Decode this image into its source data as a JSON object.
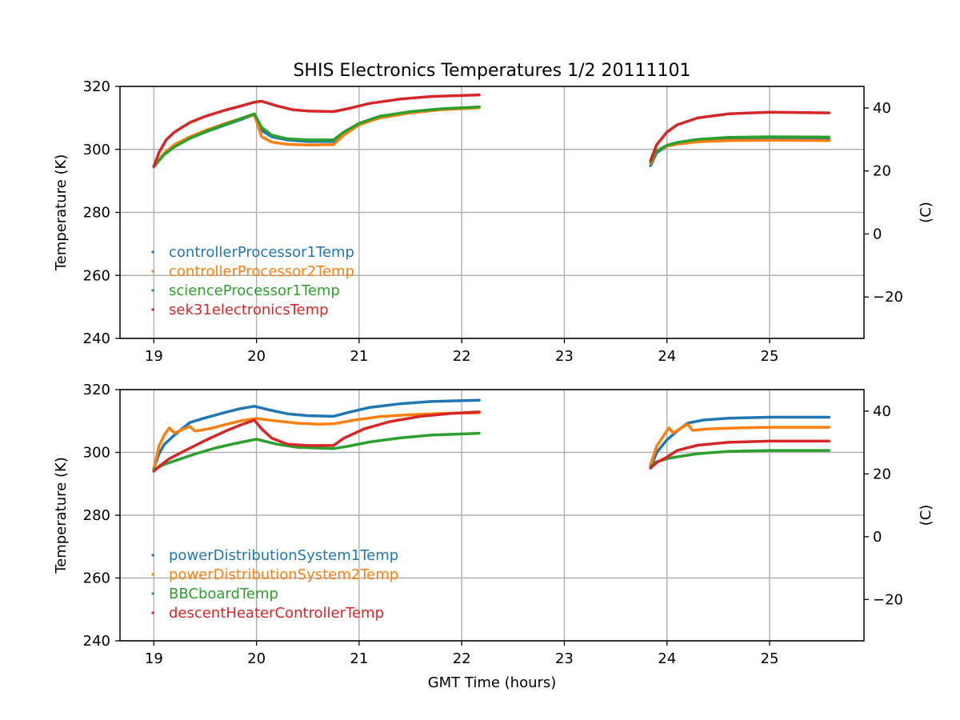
{
  "title": "SHIS Electronics Temperatures 1/2 20111101",
  "chart_data": [
    {
      "type": "line",
      "xlabel": "",
      "ylabel": "Temperature (K)",
      "y2label": "(C)",
      "xlim": [
        18.67,
        25.92
      ],
      "ylim": [
        240,
        320
      ],
      "y2lim": [
        -33.15,
        46.85
      ],
      "xticks": [
        19,
        20,
        21,
        22,
        23,
        24,
        25
      ],
      "yticks": [
        240,
        260,
        280,
        300,
        320
      ],
      "y2ticks": [
        -20,
        0,
        20,
        40
      ],
      "grid": true,
      "legend_position": "lower-left",
      "series": [
        {
          "name": "controllerProcessor1Temp",
          "color": "#1f77b4",
          "segments": [
            [
              [
                19.0,
                294.8
              ],
              [
                19.1,
                298.5
              ],
              [
                19.2,
                301.0
              ],
              [
                19.35,
                303.5
              ],
              [
                19.5,
                305.5
              ],
              [
                19.7,
                307.8
              ],
              [
                19.85,
                309.5
              ],
              [
                19.98,
                311.0
              ],
              [
                20.05,
                306.0
              ],
              [
                20.15,
                304.0
              ],
              [
                20.3,
                303.0
              ],
              [
                20.5,
                302.5
              ],
              [
                20.75,
                302.5
              ],
              [
                20.85,
                305.0
              ],
              [
                21.0,
                308.0
              ],
              [
                21.2,
                310.2
              ],
              [
                21.5,
                311.8
              ],
              [
                21.8,
                312.8
              ],
              [
                22.17,
                313.3
              ]
            ],
            [
              [
                23.84,
                294.8
              ],
              [
                23.9,
                299.0
              ],
              [
                24.0,
                301.0
              ],
              [
                24.1,
                301.8
              ],
              [
                24.3,
                302.6
              ],
              [
                24.6,
                303.0
              ],
              [
                25.0,
                303.2
              ],
              [
                25.58,
                303.1
              ]
            ]
          ]
        },
        {
          "name": "controllerProcessor2Temp",
          "color": "#ff7f0e",
          "segments": [
            [
              [
                19.0,
                294.5
              ],
              [
                19.1,
                298.8
              ],
              [
                19.2,
                301.5
              ],
              [
                19.35,
                304.0
              ],
              [
                19.5,
                306.0
              ],
              [
                19.7,
                308.3
              ],
              [
                19.85,
                309.8
              ],
              [
                19.98,
                311.0
              ],
              [
                20.05,
                304.0
              ],
              [
                20.15,
                302.3
              ],
              [
                20.3,
                301.6
              ],
              [
                20.5,
                301.4
              ],
              [
                20.75,
                301.5
              ],
              [
                20.85,
                304.5
              ],
              [
                21.0,
                307.8
              ],
              [
                21.2,
                310.0
              ],
              [
                21.5,
                311.6
              ],
              [
                21.8,
                312.6
              ],
              [
                22.17,
                313.2
              ]
            ],
            [
              [
                23.84,
                295.5
              ],
              [
                23.9,
                299.5
              ],
              [
                24.0,
                301.0
              ],
              [
                24.1,
                301.7
              ],
              [
                24.3,
                302.4
              ],
              [
                24.6,
                302.8
              ],
              [
                25.0,
                302.9
              ],
              [
                25.58,
                302.8
              ]
            ]
          ]
        },
        {
          "name": "scienceProcessor1Temp",
          "color": "#2ca02c",
          "segments": [
            [
              [
                19.0,
                294.5
              ],
              [
                19.1,
                298.3
              ],
              [
                19.2,
                300.8
              ],
              [
                19.35,
                303.5
              ],
              [
                19.5,
                305.6
              ],
              [
                19.7,
                308.0
              ],
              [
                19.85,
                309.8
              ],
              [
                19.98,
                311.3
              ],
              [
                20.05,
                307.0
              ],
              [
                20.15,
                304.5
              ],
              [
                20.3,
                303.4
              ],
              [
                20.5,
                303.0
              ],
              [
                20.75,
                303.0
              ],
              [
                20.85,
                305.5
              ],
              [
                21.0,
                308.3
              ],
              [
                21.2,
                310.5
              ],
              [
                21.5,
                312.0
              ],
              [
                21.8,
                312.9
              ],
              [
                22.17,
                313.5
              ]
            ],
            [
              [
                23.84,
                296.0
              ],
              [
                23.9,
                299.5
              ],
              [
                24.0,
                301.3
              ],
              [
                24.1,
                302.2
              ],
              [
                24.3,
                303.2
              ],
              [
                24.6,
                303.8
              ],
              [
                25.0,
                304.0
              ],
              [
                25.58,
                303.9
              ]
            ]
          ]
        },
        {
          "name": "sek31electronicsTemp",
          "color": "#d62728",
          "segments": [
            [
              [
                19.0,
                294.5
              ],
              [
                19.05,
                299.0
              ],
              [
                19.12,
                303.0
              ],
              [
                19.2,
                305.5
              ],
              [
                19.35,
                308.5
              ],
              [
                19.5,
                310.5
              ],
              [
                19.7,
                312.5
              ],
              [
                19.85,
                313.8
              ],
              [
                19.98,
                315.0
              ],
              [
                20.05,
                315.3
              ],
              [
                20.2,
                313.8
              ],
              [
                20.35,
                312.6
              ],
              [
                20.5,
                312.2
              ],
              [
                20.75,
                312.0
              ],
              [
                20.9,
                313.0
              ],
              [
                21.1,
                314.6
              ],
              [
                21.4,
                316.0
              ],
              [
                21.7,
                316.8
              ],
              [
                22.17,
                317.3
              ]
            ],
            [
              [
                23.84,
                296.5
              ],
              [
                23.9,
                301.5
              ],
              [
                24.0,
                305.5
              ],
              [
                24.1,
                307.8
              ],
              [
                24.3,
                310.0
              ],
              [
                24.6,
                311.3
              ],
              [
                25.0,
                311.8
              ],
              [
                25.58,
                311.6
              ]
            ]
          ]
        }
      ]
    },
    {
      "type": "line",
      "xlabel": "GMT Time (hours)",
      "ylabel": "Temperature (K)",
      "y2label": "(C)",
      "xlim": [
        18.67,
        25.92
      ],
      "ylim": [
        240,
        320
      ],
      "y2lim": [
        -33.15,
        46.85
      ],
      "xticks": [
        19,
        20,
        21,
        22,
        23,
        24,
        25
      ],
      "yticks": [
        240,
        260,
        280,
        300,
        320
      ],
      "y2ticks": [
        -20,
        0,
        20,
        40
      ],
      "grid": true,
      "legend_position": "lower-left",
      "series": [
        {
          "name": "powerDistributionSystem1Temp",
          "color": "#1f77b4",
          "segments": [
            [
              [
                19.0,
                295.0
              ],
              [
                19.05,
                299.5
              ],
              [
                19.1,
                302.5
              ],
              [
                19.2,
                305.5
              ],
              [
                19.35,
                309.5
              ],
              [
                19.5,
                311.0
              ],
              [
                19.7,
                312.8
              ],
              [
                19.85,
                314.0
              ],
              [
                19.98,
                314.7
              ],
              [
                20.1,
                313.7
              ],
              [
                20.3,
                312.3
              ],
              [
                20.5,
                311.7
              ],
              [
                20.75,
                311.5
              ],
              [
                20.9,
                312.8
              ],
              [
                21.1,
                314.3
              ],
              [
                21.4,
                315.5
              ],
              [
                21.7,
                316.2
              ],
              [
                22.17,
                316.6
              ]
            ],
            [
              [
                23.84,
                295.0
              ],
              [
                23.9,
                300.0
              ],
              [
                24.0,
                304.0
              ],
              [
                24.1,
                306.8
              ],
              [
                24.2,
                309.3
              ],
              [
                24.35,
                310.3
              ],
              [
                24.6,
                310.9
              ],
              [
                25.0,
                311.2
              ],
              [
                25.58,
                311.2
              ]
            ]
          ]
        },
        {
          "name": "powerDistributionSystem2Temp",
          "color": "#ff7f0e",
          "segments": [
            [
              [
                19.0,
                294.5
              ],
              [
                19.05,
                302.0
              ],
              [
                19.1,
                305.5
              ],
              [
                19.15,
                307.8
              ],
              [
                19.2,
                306.2
              ],
              [
                19.28,
                307.3
              ],
              [
                19.35,
                308.3
              ],
              [
                19.4,
                306.8
              ],
              [
                19.55,
                307.6
              ],
              [
                19.7,
                308.9
              ],
              [
                19.85,
                310.1
              ],
              [
                20.0,
                310.8
              ],
              [
                20.2,
                310.0
              ],
              [
                20.4,
                309.3
              ],
              [
                20.6,
                309.0
              ],
              [
                20.75,
                309.1
              ],
              [
                20.95,
                310.3
              ],
              [
                21.2,
                311.4
              ],
              [
                21.5,
                312.0
              ],
              [
                21.8,
                312.4
              ],
              [
                22.17,
                312.6
              ]
            ],
            [
              [
                23.84,
                296.0
              ],
              [
                23.9,
                302.0
              ],
              [
                23.97,
                305.5
              ],
              [
                24.02,
                307.8
              ],
              [
                24.06,
                306.2
              ],
              [
                24.15,
                308.0
              ],
              [
                24.2,
                309.0
              ],
              [
                24.25,
                307.0
              ],
              [
                24.4,
                307.5
              ],
              [
                24.7,
                307.8
              ],
              [
                25.0,
                308.0
              ],
              [
                25.58,
                308.0
              ]
            ]
          ]
        },
        {
          "name": "BBCboardTemp",
          "color": "#2ca02c",
          "segments": [
            [
              [
                19.0,
                294.5
              ],
              [
                19.1,
                296.2
              ],
              [
                19.25,
                297.8
              ],
              [
                19.4,
                299.5
              ],
              [
                19.6,
                301.4
              ],
              [
                19.8,
                302.9
              ],
              [
                20.0,
                304.2
              ],
              [
                20.2,
                302.6
              ],
              [
                20.4,
                301.6
              ],
              [
                20.75,
                301.2
              ],
              [
                20.9,
                302.0
              ],
              [
                21.1,
                303.3
              ],
              [
                21.4,
                304.6
              ],
              [
                21.7,
                305.5
              ],
              [
                22.17,
                306.1
              ]
            ],
            [
              [
                23.84,
                295.5
              ],
              [
                23.9,
                297.0
              ],
              [
                24.0,
                298.0
              ],
              [
                24.1,
                298.6
              ],
              [
                24.3,
                299.6
              ],
              [
                24.6,
                300.3
              ],
              [
                25.0,
                300.6
              ],
              [
                25.58,
                300.6
              ]
            ]
          ]
        },
        {
          "name": "descentHeaterControllerTemp",
          "color": "#d62728",
          "segments": [
            [
              [
                19.0,
                294.0
              ],
              [
                19.05,
                295.5
              ],
              [
                19.15,
                298.0
              ],
              [
                19.3,
                300.5
              ],
              [
                19.5,
                303.8
              ],
              [
                19.7,
                306.8
              ],
              [
                19.85,
                308.8
              ],
              [
                19.98,
                310.3
              ],
              [
                20.05,
                307.5
              ],
              [
                20.15,
                304.5
              ],
              [
                20.3,
                302.6
              ],
              [
                20.5,
                302.2
              ],
              [
                20.75,
                302.2
              ],
              [
                20.85,
                304.5
              ],
              [
                21.05,
                307.5
              ],
              [
                21.3,
                309.8
              ],
              [
                21.6,
                311.5
              ],
              [
                21.9,
                312.4
              ],
              [
                22.17,
                312.9
              ]
            ],
            [
              [
                23.84,
                295.0
              ],
              [
                23.9,
                296.8
              ],
              [
                24.0,
                298.5
              ],
              [
                24.1,
                300.6
              ],
              [
                24.3,
                302.3
              ],
              [
                24.6,
                303.2
              ],
              [
                25.0,
                303.6
              ],
              [
                25.58,
                303.6
              ]
            ]
          ]
        }
      ]
    }
  ]
}
